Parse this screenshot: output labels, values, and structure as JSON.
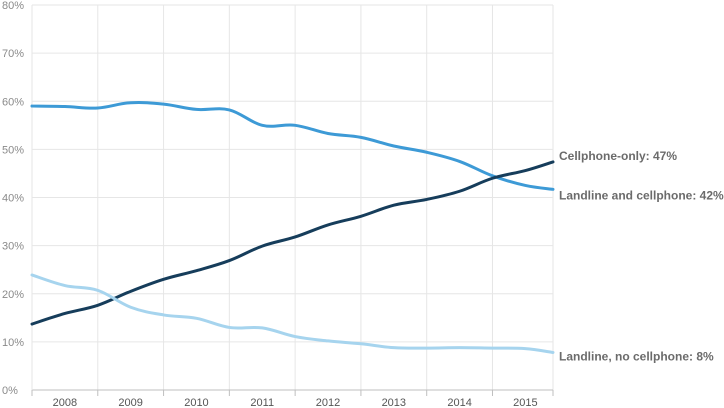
{
  "chart_data": {
    "type": "line",
    "title": "",
    "xlabel": "",
    "ylabel": "",
    "xlim": [
      2007.5,
      2015.42
    ],
    "ylim": [
      0,
      80
    ],
    "y_ticks": [
      0,
      10,
      20,
      30,
      40,
      50,
      60,
      70,
      80
    ],
    "y_tick_labels": [
      "0%",
      "10%",
      "20%",
      "30%",
      "40%",
      "50%",
      "60%",
      "70%",
      "80%"
    ],
    "x_ticks": [
      2008,
      2009,
      2010,
      2011,
      2012,
      2013,
      2014,
      2015
    ],
    "x_tick_labels": [
      "2008",
      "2009",
      "2010",
      "2011",
      "2012",
      "2013",
      "2014",
      "2015"
    ],
    "grid": "horizontal and vertical",
    "legend": "none (direct labels at right end of lines)",
    "series": [
      {
        "name": "Landline and cellphone",
        "end_label": "Landline and cellphone: 42%",
        "color": "#3d9ad6",
        "x": [
          2007.5,
          2008.0,
          2008.5,
          2009.0,
          2009.5,
          2010.0,
          2010.5,
          2011.0,
          2011.5,
          2012.0,
          2012.5,
          2013.0,
          2013.5,
          2014.0,
          2014.5,
          2015.0,
          2015.42
        ],
        "y": [
          59.0,
          58.9,
          58.6,
          59.7,
          59.4,
          58.3,
          58.2,
          55.0,
          55.0,
          53.3,
          52.5,
          50.7,
          49.4,
          47.5,
          44.5,
          42.5,
          41.7
        ]
      },
      {
        "name": "Cellphone-only",
        "end_label": "Cellphone-only: 47%",
        "color": "#163d5b",
        "x": [
          2007.5,
          2008.0,
          2008.5,
          2009.0,
          2009.5,
          2010.0,
          2010.5,
          2011.0,
          2011.5,
          2012.0,
          2012.5,
          2013.0,
          2013.5,
          2014.0,
          2014.5,
          2015.0,
          2015.42
        ],
        "y": [
          13.7,
          15.9,
          17.6,
          20.5,
          23.0,
          24.8,
          26.9,
          29.9,
          31.8,
          34.3,
          36.1,
          38.4,
          39.6,
          41.3,
          44.0,
          45.6,
          47.4
        ]
      },
      {
        "name": "Landline, no cellphone",
        "end_label": "Landline, no cellphone: 8%",
        "color": "#a6d4ee",
        "x": [
          2007.5,
          2008.0,
          2008.5,
          2009.0,
          2009.5,
          2010.0,
          2010.5,
          2011.0,
          2011.5,
          2012.0,
          2012.5,
          2013.0,
          2013.5,
          2014.0,
          2014.5,
          2015.0,
          2015.42
        ],
        "y": [
          23.9,
          21.7,
          20.7,
          17.2,
          15.6,
          14.9,
          13.0,
          12.9,
          11.1,
          10.2,
          9.6,
          8.8,
          8.7,
          8.8,
          8.7,
          8.6,
          7.8
        ]
      }
    ]
  }
}
